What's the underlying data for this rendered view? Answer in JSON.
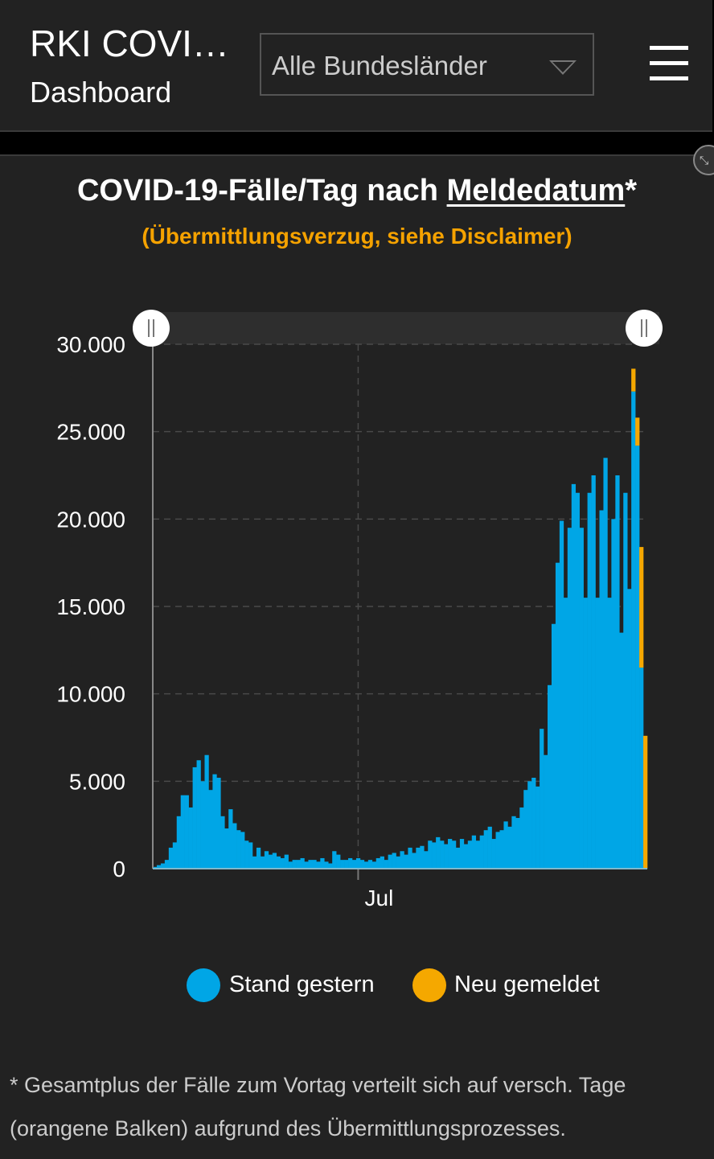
{
  "header": {
    "title": "RKI COVI…",
    "subtitle": "Dashboard",
    "select_value": "Alle Bundesländer"
  },
  "chart_data": {
    "type": "bar",
    "stacked": true,
    "title_prefix": "COVID-19-Fälle/Tag nach ",
    "title_link": "Meldedatum",
    "title_suffix": "*",
    "subtitle": "(Übermittlungsverzug, siehe Disclaimer)",
    "xlabel": "",
    "ylabel": "",
    "ylim": [
      0,
      30000
    ],
    "yticks": [
      {
        "v": 0,
        "label": "0"
      },
      {
        "v": 5000,
        "label": "5.000"
      },
      {
        "v": 10000,
        "label": "10.000"
      },
      {
        "v": 15000,
        "label": "15.000"
      },
      {
        "v": 20000,
        "label": "20.000"
      },
      {
        "v": 25000,
        "label": "25.000"
      },
      {
        "v": 30000,
        "label": "30.000"
      }
    ],
    "xticks": [
      {
        "index": 51,
        "label": "Jul"
      }
    ],
    "grid": true,
    "colors": {
      "stand": "#00a6e6",
      "neu": "#f5a800"
    },
    "series": [
      {
        "name": "Stand gestern",
        "values": [
          100,
          200,
          300,
          500,
          1200,
          1500,
          3000,
          4200,
          4200,
          3500,
          5800,
          6200,
          5000,
          6500,
          4500,
          5400,
          5200,
          3000,
          2300,
          3400,
          2600,
          2200,
          2100,
          1600,
          1500,
          700,
          1200,
          700,
          1000,
          800,
          900,
          700,
          600,
          800,
          400,
          500,
          500,
          600,
          400,
          500,
          500,
          400,
          600,
          400,
          300,
          1000,
          800,
          500,
          500,
          600,
          500,
          600,
          500,
          400,
          500,
          400,
          600,
          700,
          500,
          800,
          900,
          700,
          1000,
          800,
          1200,
          900,
          1200,
          1300,
          1000,
          1600,
          1500,
          1800,
          1600,
          1400,
          1700,
          1600,
          1200,
          1700,
          1400,
          1600,
          1900,
          1600,
          1900,
          2200,
          2400,
          1700,
          2100,
          2200,
          2700,
          2400,
          3000,
          2900,
          3500,
          4500,
          5000,
          5200,
          4700,
          8000,
          6500,
          10500,
          14000,
          17500,
          19900,
          15500,
          19500,
          22000,
          21500,
          19500,
          15500,
          21500,
          22500,
          15500,
          20500,
          23500,
          15500,
          20000,
          22500,
          13500,
          21500,
          16000,
          27300,
          24200,
          11500,
          0
        ]
      },
      {
        "name": "Neu gemeldet",
        "values": [
          0,
          0,
          0,
          0,
          0,
          0,
          0,
          0,
          0,
          0,
          0,
          0,
          0,
          0,
          0,
          0,
          0,
          0,
          0,
          0,
          0,
          0,
          0,
          0,
          0,
          0,
          0,
          0,
          0,
          0,
          0,
          0,
          0,
          0,
          0,
          0,
          0,
          0,
          0,
          0,
          0,
          0,
          0,
          0,
          0,
          0,
          0,
          0,
          0,
          0,
          0,
          0,
          0,
          0,
          0,
          0,
          0,
          0,
          0,
          0,
          0,
          0,
          0,
          0,
          0,
          0,
          0,
          0,
          0,
          0,
          0,
          0,
          0,
          0,
          0,
          0,
          0,
          0,
          0,
          0,
          0,
          0,
          0,
          0,
          0,
          0,
          0,
          0,
          0,
          0,
          0,
          0,
          0,
          0,
          0,
          0,
          0,
          0,
          0,
          0,
          0,
          0,
          0,
          0,
          0,
          0,
          0,
          0,
          0,
          0,
          0,
          0,
          0,
          0,
          0,
          0,
          0,
          0,
          0,
          0,
          1300,
          1600,
          6900,
          7600
        ]
      }
    ],
    "legend": {
      "position": "bottom",
      "items": [
        "Stand gestern",
        "Neu gemeldet"
      ]
    }
  },
  "footnote": "* Gesamtplus der Fälle zum Vortag verteilt sich auf versch. Tage (orangene Balken) aufgrund des Übermittlungsprozesses."
}
